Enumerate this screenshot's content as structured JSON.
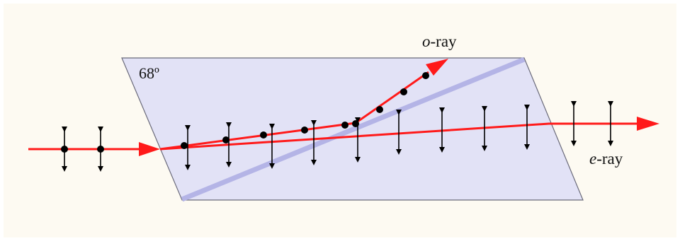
{
  "labels": {
    "angle": "68º",
    "o_ray_letter": "o",
    "o_ray_suffix": "-ray",
    "e_ray_letter": "e",
    "e_ray_suffix": "-ray"
  },
  "colors": {
    "background": "#fdfaf2",
    "prism_fill": "#e2e2f6",
    "prism_edge": "#6a6a7a",
    "interface": "#b4b4e6",
    "ray": "#ff1a1a",
    "dot": "#000000",
    "arrow": "#000000"
  }
}
